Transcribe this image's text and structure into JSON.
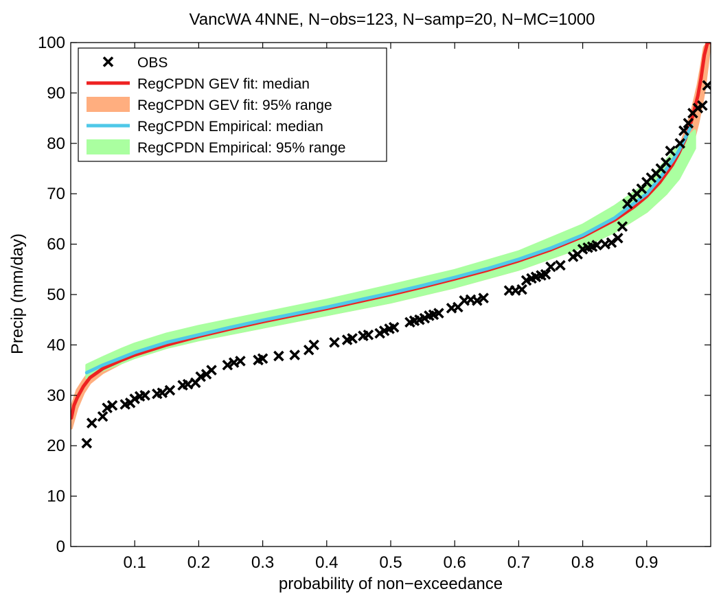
{
  "chart_data": {
    "type": "line",
    "title": "VancWA 4NNE, N−obs=123, N−samp=20, N−MC=1000",
    "xlabel": "probability of non−exceedance",
    "ylabel": "Precip (mm/day)",
    "xlim": [
      0.0,
      1.0
    ],
    "ylim": [
      0,
      100
    ],
    "xticks": [
      0.1,
      0.2,
      0.3,
      0.4,
      0.5,
      0.6,
      0.7,
      0.8,
      0.9
    ],
    "xtick_labels": [
      "0.1",
      "0.2",
      "0.3",
      "0.4",
      "0.5",
      "0.6",
      "0.7",
      "0.8",
      "0.9"
    ],
    "yticks": [
      0,
      10,
      20,
      30,
      40,
      50,
      60,
      70,
      80,
      90,
      100
    ],
    "ytick_labels": [
      "0",
      "10",
      "20",
      "30",
      "40",
      "50",
      "60",
      "70",
      "80",
      "90",
      "100"
    ],
    "grid": false,
    "legend_position": "top-left",
    "legend": [
      {
        "label": "OBS",
        "kind": "marker",
        "color": "#000000"
      },
      {
        "label": "RegCPDN GEV fit: median",
        "kind": "line",
        "color": "#ee2222"
      },
      {
        "label": "RegCPDN GEV fit: 95% range",
        "kind": "band",
        "color": "#ffae7f"
      },
      {
        "label": "RegCPDN Empirical: median",
        "kind": "line",
        "color": "#4fc8e8"
      },
      {
        "label": "RegCPDN Empirical: 95% range",
        "kind": "band",
        "color": "#aaffa0"
      }
    ],
    "series": [
      {
        "name": "RegCPDN GEV fit: 95% range",
        "kind": "band",
        "color": "#ffae7f",
        "x": [
          0.001,
          0.01,
          0.02,
          0.03,
          0.05,
          0.08,
          0.1,
          0.15,
          0.2,
          0.3,
          0.4,
          0.5,
          0.6,
          0.7,
          0.8,
          0.85,
          0.9,
          0.93,
          0.95,
          0.97,
          0.98,
          0.985,
          0.99,
          0.995,
          0.999
        ],
        "lower": [
          23.5,
          27.5,
          30.5,
          32.5,
          34.5,
          36.5,
          37.5,
          39.5,
          41.0,
          43.5,
          46.0,
          48.5,
          51.5,
          55.0,
          59.5,
          62.5,
          66.5,
          70.0,
          73.5,
          79.0,
          84.0,
          87.0,
          90.5,
          95.5,
          100.0
        ],
        "upper": [
          27.5,
          31.0,
          33.0,
          34.8,
          36.5,
          38.5,
          39.5,
          41.5,
          43.0,
          45.5,
          48.0,
          50.8,
          53.8,
          57.5,
          62.5,
          65.5,
          70.5,
          74.5,
          78.5,
          86.0,
          91.5,
          95.0,
          99.0,
          100.0,
          100.0
        ]
      },
      {
        "name": "RegCPDN Empirical: 95% range",
        "kind": "band",
        "color": "#aaffa0",
        "x": [
          0.025,
          0.05,
          0.08,
          0.1,
          0.15,
          0.2,
          0.3,
          0.4,
          0.5,
          0.6,
          0.7,
          0.8,
          0.85,
          0.9,
          0.93,
          0.95,
          0.975
        ],
        "lower": [
          33.5,
          35.0,
          36.5,
          37.5,
          39.5,
          41.0,
          43.5,
          46.0,
          48.5,
          51.5,
          55.0,
          59.5,
          62.5,
          66.5,
          70.0,
          73.0,
          79.0
        ],
        "upper": [
          36.0,
          37.5,
          39.2,
          40.2,
          42.2,
          43.7,
          46.3,
          48.9,
          51.8,
          54.8,
          58.5,
          63.8,
          67.5,
          72.0,
          76.5,
          79.5,
          82.5
        ]
      },
      {
        "name": "RegCPDN GEV fit: median",
        "kind": "line",
        "color": "#ee2222",
        "x": [
          0.001,
          0.005,
          0.01,
          0.02,
          0.03,
          0.05,
          0.08,
          0.1,
          0.15,
          0.2,
          0.25,
          0.3,
          0.35,
          0.4,
          0.45,
          0.5,
          0.55,
          0.6,
          0.65,
          0.7,
          0.75,
          0.8,
          0.85,
          0.88,
          0.9,
          0.92,
          0.94,
          0.95,
          0.96,
          0.97,
          0.98,
          0.985,
          0.99,
          0.995,
          0.999
        ],
        "y": [
          25.5,
          28.0,
          29.5,
          31.8,
          33.5,
          35.3,
          37.0,
          38.0,
          40.0,
          41.7,
          43.2,
          44.6,
          45.9,
          47.2,
          48.6,
          50.0,
          51.5,
          53.1,
          54.8,
          56.7,
          58.9,
          61.5,
          64.8,
          67.4,
          69.5,
          72.2,
          75.7,
          78.0,
          80.7,
          84.5,
          89.5,
          93.0,
          97.5,
          100.0,
          100.0
        ]
      },
      {
        "name": "RegCPDN Empirical: median",
        "kind": "line",
        "color": "#4fc8e8",
        "x": [
          0.025,
          0.05,
          0.08,
          0.1,
          0.15,
          0.2,
          0.25,
          0.3,
          0.35,
          0.4,
          0.45,
          0.5,
          0.55,
          0.6,
          0.65,
          0.7,
          0.75,
          0.8,
          0.85,
          0.9,
          0.92,
          0.94,
          0.95,
          0.97
        ],
        "y": [
          34.5,
          36.0,
          37.5,
          38.5,
          40.5,
          42.0,
          43.5,
          44.9,
          46.2,
          47.5,
          48.9,
          50.3,
          51.8,
          53.4,
          55.1,
          57.0,
          59.2,
          61.8,
          65.2,
          70.0,
          73.0,
          76.5,
          78.5,
          83.5
        ]
      },
      {
        "name": "OBS",
        "kind": "marker",
        "color": "#000000",
        "x": [
          0.025,
          0.033,
          0.05,
          0.057,
          0.065,
          0.085,
          0.093,
          0.1,
          0.108,
          0.116,
          0.135,
          0.143,
          0.155,
          0.175,
          0.183,
          0.195,
          0.203,
          0.212,
          0.22,
          0.245,
          0.255,
          0.265,
          0.293,
          0.3,
          0.325,
          0.35,
          0.372,
          0.38,
          0.412,
          0.432,
          0.44,
          0.457,
          0.465,
          0.483,
          0.49,
          0.498,
          0.505,
          0.53,
          0.537,
          0.545,
          0.553,
          0.56,
          0.567,
          0.575,
          0.595,
          0.605,
          0.615,
          0.625,
          0.635,
          0.645,
          0.685,
          0.695,
          0.705,
          0.712,
          0.72,
          0.727,
          0.735,
          0.742,
          0.75,
          0.765,
          0.785,
          0.792,
          0.8,
          0.808,
          0.815,
          0.822,
          0.835,
          0.845,
          0.855,
          0.862,
          0.87,
          0.878,
          0.885,
          0.892,
          0.9,
          0.907,
          0.915,
          0.922,
          0.93,
          0.937,
          0.952,
          0.958,
          0.965,
          0.972,
          0.98,
          0.987,
          0.995
        ],
        "y": [
          20.5,
          24.5,
          25.8,
          27.5,
          28.0,
          28.2,
          28.5,
          29.3,
          29.8,
          30.0,
          30.3,
          30.5,
          31.0,
          32.0,
          32.2,
          32.5,
          33.7,
          34.2,
          35.0,
          36.0,
          36.5,
          36.8,
          37.0,
          37.3,
          37.8,
          38.0,
          39.0,
          40.0,
          40.5,
          41.0,
          41.3,
          41.8,
          42.0,
          42.3,
          42.8,
          43.2,
          43.5,
          44.5,
          44.8,
          45.0,
          45.3,
          45.8,
          46.0,
          46.3,
          47.3,
          47.5,
          48.8,
          49.0,
          48.8,
          49.3,
          50.8,
          50.8,
          51.0,
          52.8,
          53.2,
          53.5,
          53.8,
          54.0,
          55.5,
          55.8,
          57.5,
          58.0,
          59.0,
          59.3,
          59.5,
          59.8,
          60.0,
          60.3,
          61.2,
          63.5,
          68.0,
          69.3,
          70.0,
          71.0,
          72.3,
          73.2,
          74.0,
          75.0,
          76.2,
          78.5,
          80.0,
          82.5,
          84.0,
          86.0,
          87.0,
          87.5,
          91.5
        ]
      }
    ]
  }
}
